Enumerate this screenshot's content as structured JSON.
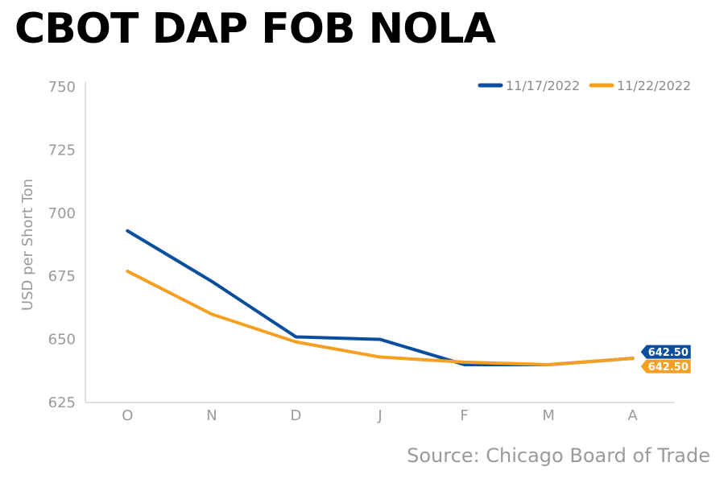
{
  "title": "CBOT DAP FOB NOLA",
  "source": "Source: Chicago Board of Trade",
  "chart_data": {
    "type": "line",
    "title": "CBOT DAP FOB NOLA",
    "xlabel": "",
    "ylabel": "USD per Short Ton",
    "ylim": [
      625,
      750
    ],
    "yticks": [
      "625",
      "650",
      "675",
      "700",
      "725",
      "750"
    ],
    "categories": [
      "O",
      "N",
      "D",
      "J",
      "F",
      "M",
      "A"
    ],
    "grid": false,
    "legend_position": "top-right",
    "series": [
      {
        "name": "11/17/2022",
        "color": "#0b4f9c",
        "values": [
          693,
          673,
          651,
          650,
          640,
          640,
          642.5
        ],
        "end_label": "642.50"
      },
      {
        "name": "11/22/2022",
        "color": "#f5a023",
        "values": [
          677,
          660,
          649,
          643,
          641,
          640,
          642.5
        ],
        "end_label": "642.50"
      }
    ]
  }
}
